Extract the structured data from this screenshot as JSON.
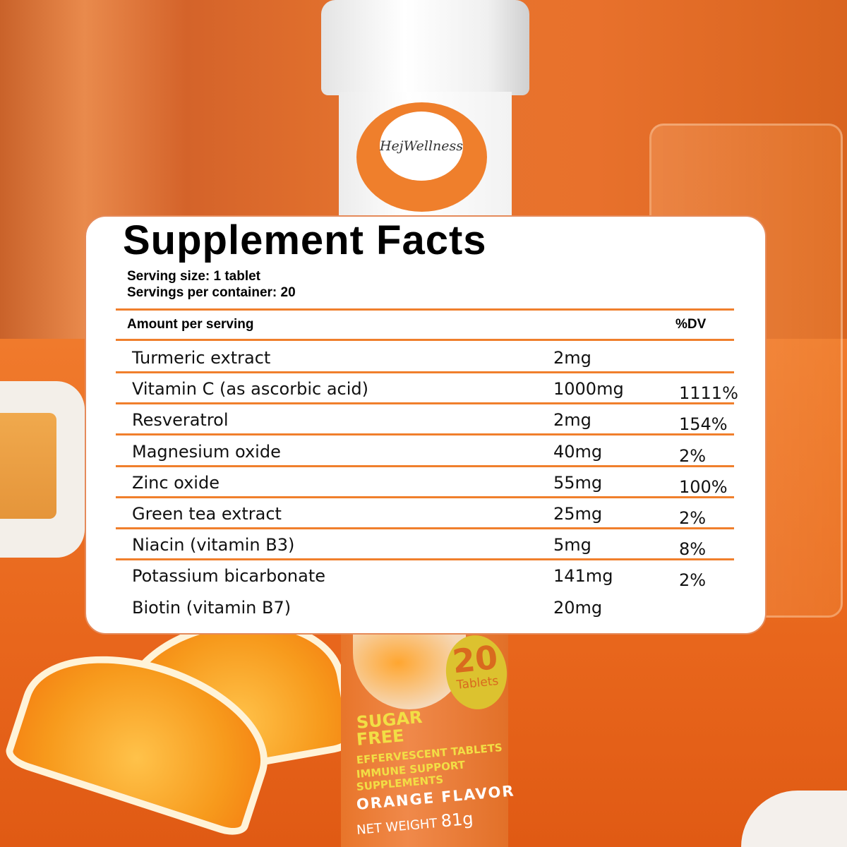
{
  "brand": "HejWellness",
  "bottle": {
    "count": "20",
    "count_unit": "Tablets",
    "claim_1": "SUGAR",
    "claim_2": "FREE",
    "line_1": "EFFERVESCENT TABLETS",
    "line_2": "IMMUNE SUPPORT",
    "line_3": "SUPPLEMENTS",
    "flavor": "ORANGE FLAVOR",
    "net_weight_label": "NET WEIGHT",
    "net_weight": "81g"
  },
  "facts": {
    "title": "Supplement Facts",
    "serving_size": "Serving size: 1 tablet",
    "servings_per_container": "Servings per container: 20",
    "amount_header": "Amount per serving",
    "dv_header": "%DV",
    "rows": [
      {
        "name": "Turmeric extract",
        "amount": "2mg",
        "dv": ""
      },
      {
        "name": "Vitamin C (as ascorbic acid)",
        "amount": "1000mg",
        "dv": "1111%"
      },
      {
        "name": "Resveratrol",
        "amount": "2mg",
        "dv": "154%"
      },
      {
        "name": "Magnesium oxide",
        "amount": "40mg",
        "dv": "2%"
      },
      {
        "name": "Zinc oxide",
        "amount": "55mg",
        "dv": "100%"
      },
      {
        "name": "Green tea extract",
        "amount": "25mg",
        "dv": "2%"
      },
      {
        "name": "Niacin (vitamin B3)",
        "amount": "5mg",
        "dv": "8%"
      },
      {
        "name": "Potassium bicarbonate",
        "amount": "141mg",
        "dv": "2%"
      },
      {
        "name": "Biotin (vitamin B7)",
        "amount": "20mg",
        "dv": ""
      }
    ]
  },
  "colors": {
    "accent": "#f07f2c",
    "badge": "#dcc22f"
  }
}
